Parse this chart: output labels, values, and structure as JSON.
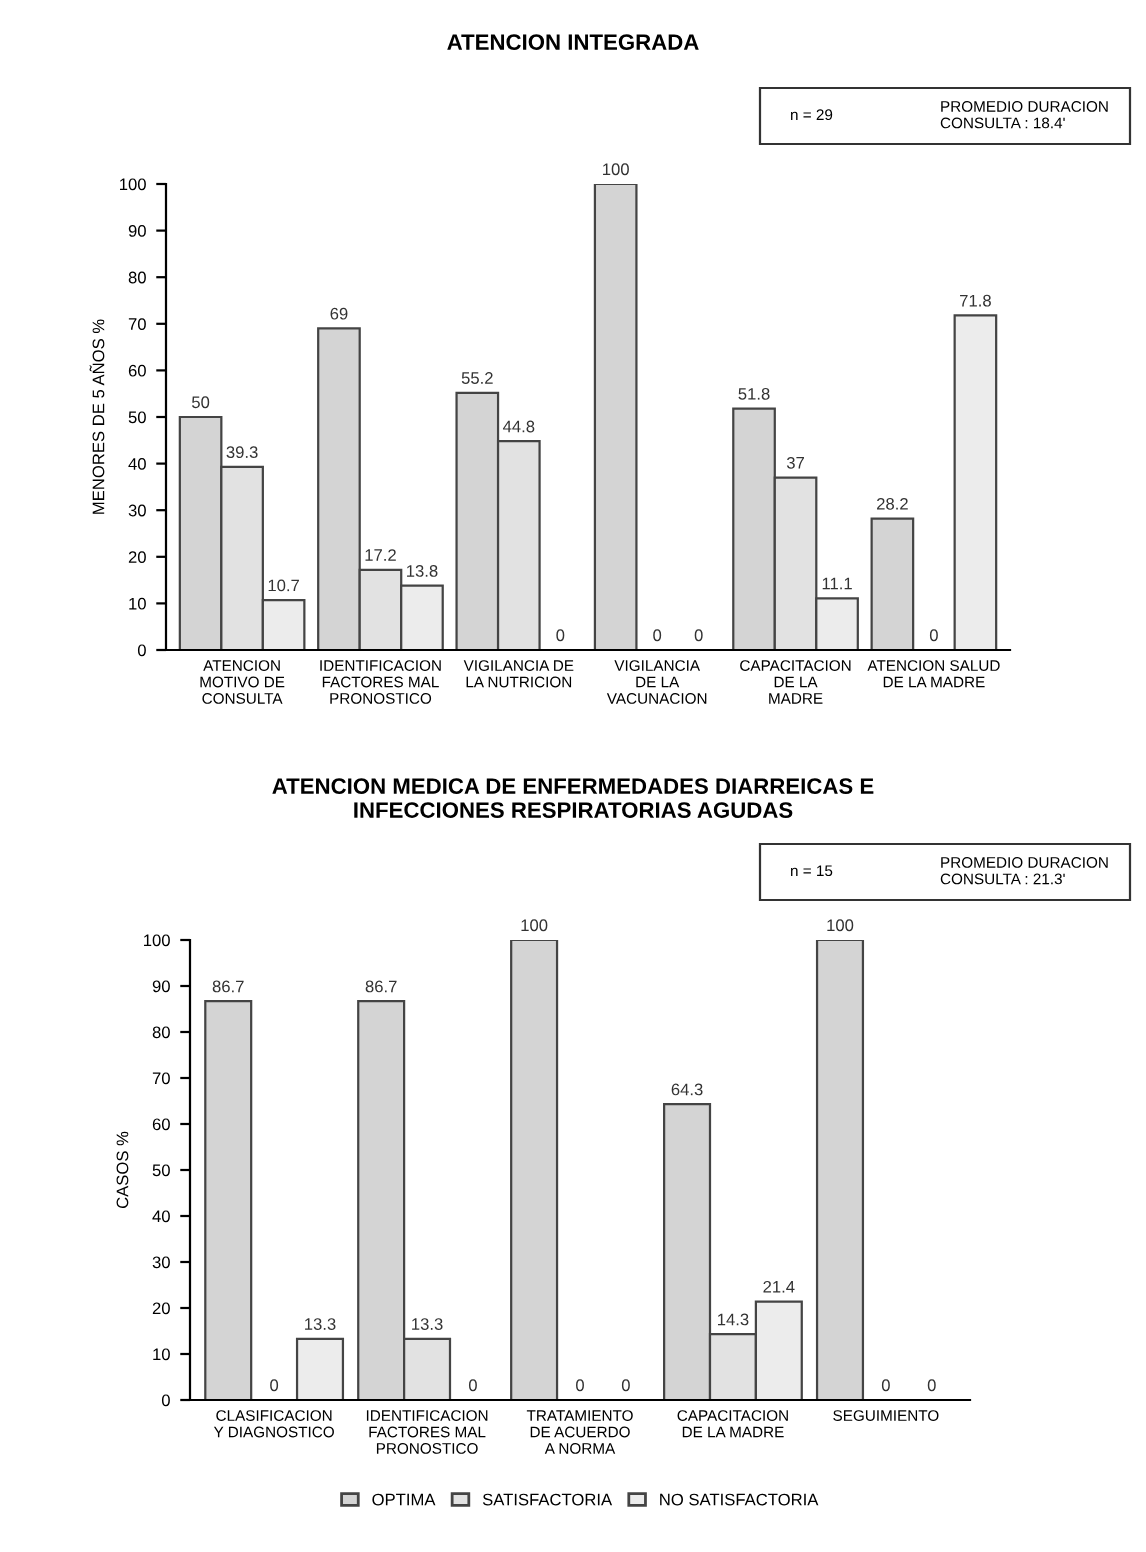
{
  "chart_data": [
    {
      "type": "bar",
      "title": "ATENCION INTEGRADA",
      "ylabel": "MENORES DE 5 AÑOS %",
      "annotations": [
        "n = 29",
        "PROMEDIO DURACION\nCONSULTA : 18.4'"
      ],
      "categories": [
        "ATENCION\nMOTIVO DE\nCONSULTA",
        "IDENTIFICACION\nFACTORES MAL\nPRONOSTICO",
        "VIGILANCIA DE\nLA NUTRICION",
        "VIGILANCIA\nDE LA\nVACUNACION",
        "CAPACITACION\nDE LA\nMADRE",
        "ATENCION SALUD\nDE LA MADRE"
      ],
      "series": [
        {
          "color": "#d4d4d4",
          "values": [
            50,
            69,
            55.2,
            100,
            51.8,
            28.2
          ]
        },
        {
          "color": "#e2e2e2",
          "values": [
            39.3,
            17.2,
            44.8,
            0,
            37,
            0
          ]
        },
        {
          "color": "#ececec",
          "values": [
            10.7,
            13.8,
            0,
            0,
            11.1,
            71.8
          ]
        }
      ],
      "ylim": [
        0,
        100
      ],
      "yticks": [
        0,
        10,
        20,
        30,
        40,
        50,
        60,
        70,
        80,
        90,
        100
      ],
      "data_labels": true,
      "grid": false,
      "legend": false
    },
    {
      "type": "bar",
      "title": "ATENCION MEDICA DE ENFERMEDADES DIARREICAS E\nINFECCIONES RESPIRATORIAS AGUDAS",
      "ylabel": "CASOS %",
      "annotations": [
        "n = 15",
        "PROMEDIO DURACION\nCONSULTA : 21.3'"
      ],
      "categories": [
        "CLASIFICACION\nY DIAGNOSTICO",
        "IDENTIFICACION\nFACTORES MAL\nPRONOSTICO",
        "TRATAMIENTO\nDE ACUERDO\nA NORMA",
        "CAPACITACION\nDE LA MADRE",
        "SEGUIMIENTO"
      ],
      "series": [
        {
          "name": "OPTIMA",
          "color": "#d4d4d4",
          "values": [
            86.7,
            86.7,
            100,
            64.3,
            100
          ]
        },
        {
          "name": "SATISFACTORIA",
          "color": "#e2e2e2",
          "values": [
            0,
            13.3,
            0,
            14.3,
            0
          ]
        },
        {
          "name": "NO SATISFACTORIA",
          "color": "#ececec",
          "values": [
            13.3,
            0,
            0,
            21.4,
            0
          ]
        }
      ],
      "ylim": [
        0,
        100
      ],
      "yticks": [
        0,
        10,
        20,
        30,
        40,
        50,
        60,
        70,
        80,
        90,
        100
      ],
      "data_labels": true,
      "grid": false,
      "legend": "bottom"
    }
  ]
}
